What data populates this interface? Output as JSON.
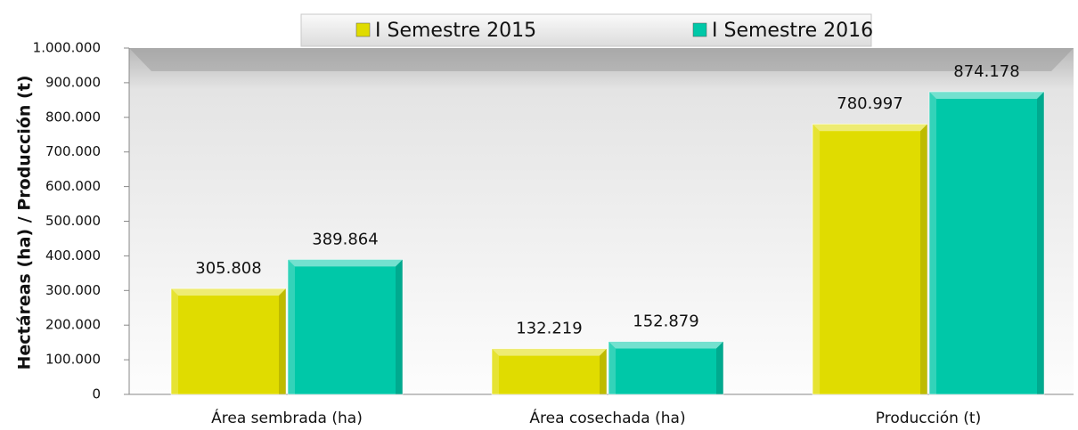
{
  "chart_data": {
    "type": "bar",
    "y_label": "Hectáreas (ha) / Producción (t)",
    "categories": [
      "Área sembrada (ha)",
      "Área cosechada (ha)",
      "Producción (t)"
    ],
    "series": [
      {
        "name": "I Semestre 2015",
        "color": "#e0dc00",
        "values": [
          305808,
          132219,
          780997
        ],
        "value_labels": [
          "305.808",
          "132.219",
          "780.997"
        ]
      },
      {
        "name": "I Semestre 2016",
        "color": "#00c8a8",
        "values": [
          389864,
          152879,
          874178
        ],
        "value_labels": [
          "389.864",
          "152.879",
          "874.178"
        ]
      }
    ],
    "ylim": [
      0,
      1000000
    ],
    "yticks": [
      0,
      {
        "value": 100000,
        "label": "100.000"
      },
      {
        "value": 200000,
        "label": "200.000"
      },
      {
        "value": 300000,
        "label": "300.000"
      },
      {
        "value": 400000,
        "label": "400.000"
      },
      {
        "value": 500000,
        "label": "500.000"
      },
      {
        "value": 600000,
        "label": "600.000"
      },
      {
        "value": 700000,
        "label": "700.000"
      },
      {
        "value": 800000,
        "label": "800.000"
      },
      {
        "value": 900000,
        "label": "900.000"
      },
      {
        "value": 1000000,
        "label": "1.000.000"
      }
    ],
    "legend": "top"
  }
}
